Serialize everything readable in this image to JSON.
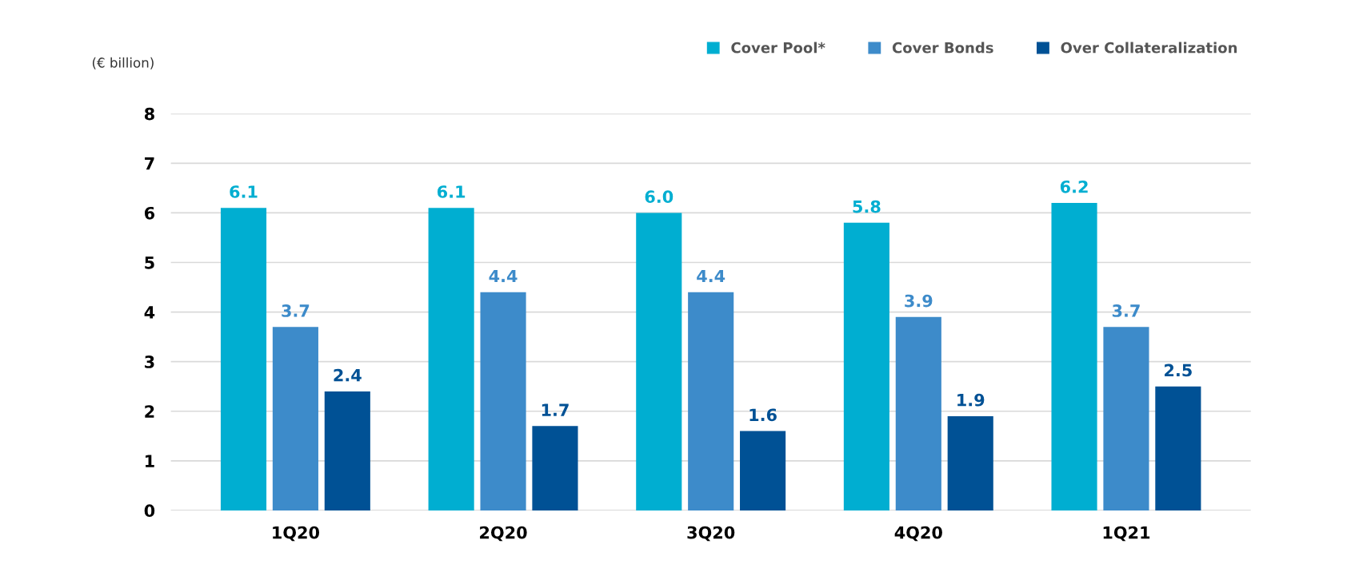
{
  "chart_data": {
    "type": "bar",
    "ylabel": "(€ billion)",
    "categories": [
      "1Q20",
      "2Q20",
      "3Q20",
      "4Q20",
      "1Q21"
    ],
    "series": [
      {
        "name": "Cover Pool*",
        "color": "#00aed1",
        "values": [
          6.1,
          6.1,
          6.0,
          5.8,
          6.2
        ],
        "value_labels": [
          "6.1",
          "6.1",
          "6.0",
          "5.8",
          "6.2"
        ]
      },
      {
        "name": "Cover Bonds",
        "color": "#3d8bca",
        "values": [
          3.7,
          4.4,
          4.4,
          3.9,
          3.7
        ],
        "value_labels": [
          "3.7",
          "4.4",
          "4.4",
          "3.9",
          "3.7"
        ]
      },
      {
        "name": "Over Collateralization",
        "color": "#005195",
        "values": [
          2.4,
          1.7,
          1.6,
          1.9,
          2.5
        ],
        "value_labels": [
          "2.4",
          "1.7",
          "1.6",
          "1.9",
          "2.5"
        ]
      }
    ],
    "ylim": [
      0,
      8
    ],
    "yticks": [
      0,
      1,
      2,
      3,
      4,
      5,
      6,
      7,
      8
    ],
    "grid": "y",
    "legend": "top right"
  }
}
